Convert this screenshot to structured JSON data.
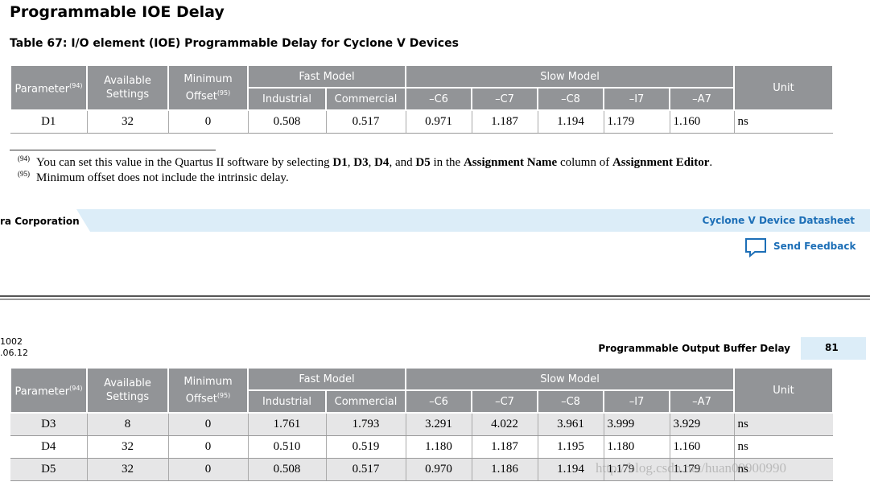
{
  "heading": "Programmable IOE Delay",
  "table_caption": "Table 67: I/O element (IOE) Programmable Delay for Cyclone V Devices",
  "table_header": {
    "parameter": "Parameter",
    "parameter_note": "(94)",
    "available": "Available Settings",
    "minimum": "Minimum Offset",
    "minimum_note": "(95)",
    "fast_model": "Fast Model",
    "slow_model": "Slow Model",
    "unit": "Unit",
    "subcolumns": [
      "Industrial",
      "Commercial",
      "–C6",
      "–C7",
      "–C8",
      "–I7",
      "–A7"
    ]
  },
  "tables": [
    {
      "rows": [
        [
          "D1",
          "32",
          "0",
          "0.508",
          "0.517",
          "0.971",
          "1.187",
          "1.194",
          "1.179",
          "1.160",
          "ns"
        ]
      ]
    },
    {
      "rows": [
        [
          "D3",
          "8",
          "0",
          "1.761",
          "1.793",
          "3.291",
          "4.022",
          "3.961",
          "3.999",
          "3.929",
          "ns"
        ],
        [
          "D4",
          "32",
          "0",
          "0.510",
          "0.519",
          "1.180",
          "1.187",
          "1.195",
          "1.180",
          "1.160",
          "ns"
        ],
        [
          "D5",
          "32",
          "0",
          "0.508",
          "0.517",
          "0.970",
          "1.186",
          "1.194",
          "1.179",
          "1.179",
          "ns"
        ]
      ]
    }
  ],
  "footnotes": [
    {
      "mark": "(94)",
      "segments": [
        {
          "text": "You can set this value in the Quartus II software by selecting ",
          "bold": false
        },
        {
          "text": "D1",
          "bold": true
        },
        {
          "text": ", ",
          "bold": false
        },
        {
          "text": "D3",
          "bold": true
        },
        {
          "text": ", ",
          "bold": false
        },
        {
          "text": "D4",
          "bold": true
        },
        {
          "text": ", and ",
          "bold": false
        },
        {
          "text": "D5",
          "bold": true
        },
        {
          "text": " in the ",
          "bold": false
        },
        {
          "text": "Assignment Name",
          "bold": true
        },
        {
          "text": " column of ",
          "bold": false
        },
        {
          "text": "Assignment Editor",
          "bold": true
        },
        {
          "text": ".",
          "bold": false
        }
      ]
    },
    {
      "mark": "(95)",
      "segments": [
        {
          "text": "Minimum offset does not include the intrinsic delay.",
          "bold": false
        }
      ]
    }
  ],
  "footer": {
    "company": "ra Corporation",
    "doc_title": "Cyclone V Device Datasheet",
    "feedback": "Send Feedback"
  },
  "page_header": {
    "doc_id": "1002",
    "date": ".06.12",
    "section": "Programmable Output Buffer Delay",
    "page": "81"
  },
  "watermark": "http://blog.csdn.net/huan09900990"
}
